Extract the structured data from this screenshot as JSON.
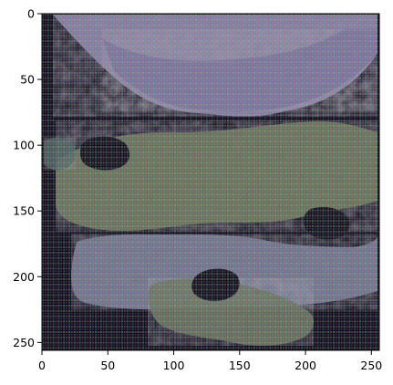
{
  "chart_data": {
    "type": "image",
    "title": "",
    "xlabel": "",
    "ylabel": "",
    "image_size": [
      256,
      256
    ],
    "xlim": [
      0,
      256
    ],
    "ylim": [
      256,
      0
    ],
    "x_ticks": [
      0,
      50,
      100,
      150,
      200,
      250
    ],
    "y_ticks": [
      0,
      50,
      100,
      150,
      200,
      250
    ],
    "x_tick_labels": [
      "0",
      "50",
      "100",
      "150",
      "200",
      "250"
    ],
    "y_tick_labels": [
      "0",
      "50",
      "100",
      "150",
      "200",
      "250"
    ],
    "grid": false,
    "colors": {
      "dark_regions": "#140c18",
      "top_lavender": "#8a7f9c",
      "middle_olive": "#6d7358",
      "frame": "#000000"
    }
  }
}
